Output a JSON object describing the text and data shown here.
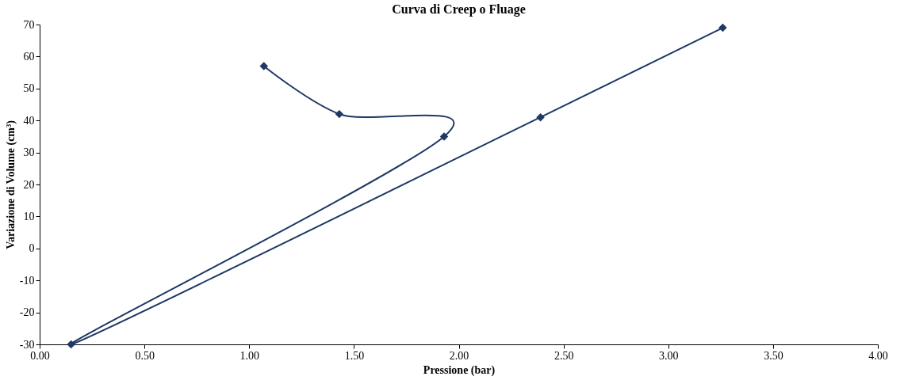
{
  "chart_data": {
    "type": "line",
    "title": "Curva di Creep o Fluage",
    "xlabel": "Pressione (bar)",
    "ylabel": "Variazione di Volume (cm³)",
    "series": [
      {
        "color": "#1f3864",
        "x": [
          1.07,
          1.43,
          1.93,
          0.15,
          2.39,
          3.26
        ],
        "values": [
          57,
          42,
          35,
          -30,
          41,
          69
        ]
      }
    ],
    "xlim": [
      0,
      4
    ],
    "xticks": [
      {
        "value": 0,
        "label": "0.00"
      },
      {
        "value": 0.5,
        "label": "0.50"
      },
      {
        "value": 1,
        "label": "1.00"
      },
      {
        "value": 1.5,
        "label": "1.50"
      },
      {
        "value": 2,
        "label": "2.00"
      },
      {
        "value": 2.5,
        "label": "2.50"
      },
      {
        "value": 3,
        "label": "3.00"
      },
      {
        "value": 3.5,
        "label": "3.50"
      },
      {
        "value": 4,
        "label": "4.00"
      }
    ],
    "ylim": [
      -30,
      70
    ],
    "yticks": [
      -30,
      -20,
      -10,
      0,
      10,
      20,
      30,
      40,
      50,
      60,
      70
    ],
    "grid": false,
    "legend": false,
    "marker": "diamond",
    "line_style": "solid"
  }
}
